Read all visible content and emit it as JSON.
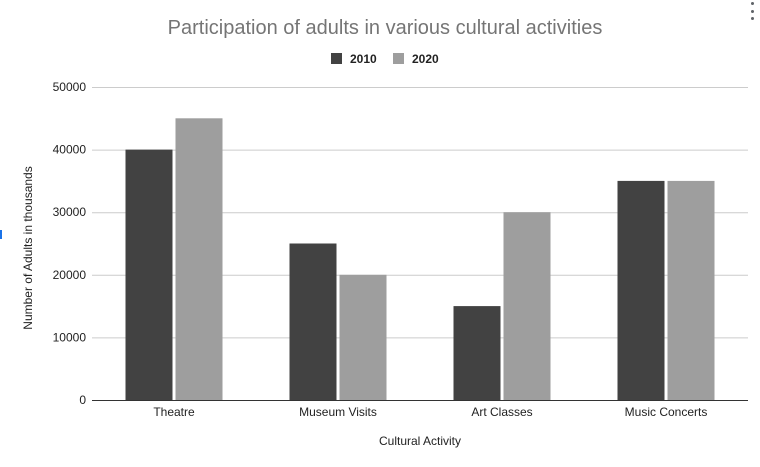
{
  "chart_data": {
    "type": "bar",
    "title": "Participation of adults in various cultural activities",
    "xlabel": "Cultural Activity",
    "ylabel": "Number of Adults in thousands",
    "categories": [
      "Theatre",
      "Museum Visits",
      "Art Classes",
      "Music Concerts"
    ],
    "series": [
      {
        "name": "2010",
        "values": [
          40000,
          25000,
          15000,
          35000
        ],
        "color": "#424242"
      },
      {
        "name": "2020",
        "values": [
          45000,
          20000,
          30000,
          35000
        ],
        "color": "#9e9e9e"
      }
    ],
    "ylim": [
      0,
      50000
    ],
    "yticks": [
      0,
      10000,
      20000,
      30000,
      40000,
      50000
    ],
    "grid": true,
    "legend_position": "top"
  },
  "ui": {
    "menu_icon": "more-vertical-icon",
    "accent_color": "#1a73e8"
  }
}
